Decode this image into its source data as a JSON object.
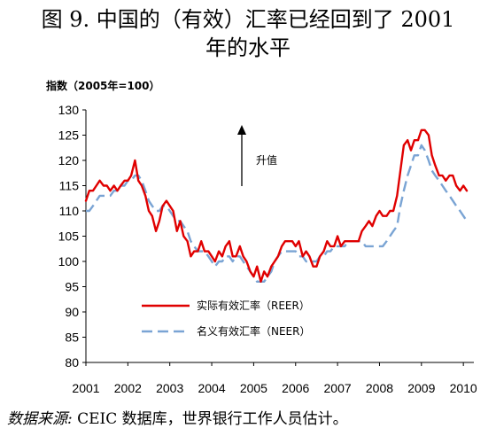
{
  "title": {
    "line1": "图 9. 中国的（有效）汇率已经回到了 2001",
    "line2": "年的水平"
  },
  "source": {
    "label": "数据来源:",
    "text": " CEIC 数据库，世界银行工作人员估计。"
  },
  "chart_data": {
    "type": "line",
    "ylabel": "指数（2005年=100）",
    "xlabel": "",
    "ylim": [
      80,
      130
    ],
    "xlim": [
      2001,
      2010.25
    ],
    "y_ticks": [
      "80",
      "85",
      "90",
      "95",
      "100",
      "105",
      "110",
      "115",
      "120",
      "125",
      "130"
    ],
    "x_ticks": [
      "2001",
      "2002",
      "2003",
      "2004",
      "2005",
      "2006",
      "2007",
      "2008",
      "2009",
      "2010"
    ],
    "grid": false,
    "legend_position": "bottom-center",
    "annotation": {
      "label": "升值",
      "direction": "up"
    },
    "series": [
      {
        "name": "实际有效汇率（REER）",
        "color": "#e00000",
        "style": "solid",
        "points": [
          [
            2001.0,
            112
          ],
          [
            2001.08,
            114
          ],
          [
            2001.17,
            114
          ],
          [
            2001.25,
            115
          ],
          [
            2001.33,
            116
          ],
          [
            2001.42,
            115
          ],
          [
            2001.5,
            115
          ],
          [
            2001.58,
            114
          ],
          [
            2001.67,
            115
          ],
          [
            2001.75,
            114
          ],
          [
            2001.83,
            115
          ],
          [
            2001.92,
            116
          ],
          [
            2002.0,
            116
          ],
          [
            2002.08,
            117
          ],
          [
            2002.17,
            120
          ],
          [
            2002.25,
            116
          ],
          [
            2002.33,
            115
          ],
          [
            2002.42,
            113
          ],
          [
            2002.5,
            110
          ],
          [
            2002.58,
            109
          ],
          [
            2002.67,
            106
          ],
          [
            2002.75,
            108
          ],
          [
            2002.83,
            111
          ],
          [
            2002.92,
            112
          ],
          [
            2003.0,
            111
          ],
          [
            2003.08,
            110
          ],
          [
            2003.17,
            106
          ],
          [
            2003.25,
            108
          ],
          [
            2003.33,
            105
          ],
          [
            2003.42,
            104
          ],
          [
            2003.5,
            101
          ],
          [
            2003.58,
            102
          ],
          [
            2003.67,
            102
          ],
          [
            2003.75,
            104
          ],
          [
            2003.83,
            102
          ],
          [
            2003.92,
            102
          ],
          [
            2004.0,
            101
          ],
          [
            2004.08,
            100
          ],
          [
            2004.17,
            102
          ],
          [
            2004.25,
            101
          ],
          [
            2004.33,
            103
          ],
          [
            2004.42,
            104
          ],
          [
            2004.5,
            101
          ],
          [
            2004.58,
            101
          ],
          [
            2004.67,
            103
          ],
          [
            2004.75,
            101
          ],
          [
            2004.83,
            100
          ],
          [
            2004.92,
            98
          ],
          [
            2005.0,
            97
          ],
          [
            2005.08,
            99
          ],
          [
            2005.17,
            96
          ],
          [
            2005.25,
            98
          ],
          [
            2005.33,
            97
          ],
          [
            2005.42,
            99
          ],
          [
            2005.5,
            100
          ],
          [
            2005.58,
            101
          ],
          [
            2005.67,
            103
          ],
          [
            2005.75,
            104
          ],
          [
            2005.83,
            104
          ],
          [
            2005.92,
            104
          ],
          [
            2006.0,
            103
          ],
          [
            2006.08,
            104
          ],
          [
            2006.17,
            101
          ],
          [
            2006.25,
            102
          ],
          [
            2006.33,
            101
          ],
          [
            2006.42,
            99
          ],
          [
            2006.5,
            99
          ],
          [
            2006.58,
            101
          ],
          [
            2006.67,
            102
          ],
          [
            2006.75,
            104
          ],
          [
            2006.83,
            103
          ],
          [
            2006.92,
            103
          ],
          [
            2007.0,
            105
          ],
          [
            2007.08,
            103
          ],
          [
            2007.17,
            104
          ],
          [
            2007.25,
            104
          ],
          [
            2007.33,
            104
          ],
          [
            2007.42,
            104
          ],
          [
            2007.5,
            104
          ],
          [
            2007.58,
            106
          ],
          [
            2007.67,
            107
          ],
          [
            2007.75,
            108
          ],
          [
            2007.83,
            107
          ],
          [
            2007.92,
            109
          ],
          [
            2008.0,
            110
          ],
          [
            2008.08,
            109
          ],
          [
            2008.17,
            109
          ],
          [
            2008.25,
            110
          ],
          [
            2008.33,
            110
          ],
          [
            2008.42,
            113
          ],
          [
            2008.5,
            118
          ],
          [
            2008.58,
            123
          ],
          [
            2008.67,
            124
          ],
          [
            2008.75,
            122
          ],
          [
            2008.83,
            124
          ],
          [
            2008.92,
            124
          ],
          [
            2009.0,
            126
          ],
          [
            2009.08,
            126
          ],
          [
            2009.17,
            125
          ],
          [
            2009.25,
            121
          ],
          [
            2009.33,
            119
          ],
          [
            2009.42,
            117
          ],
          [
            2009.5,
            117
          ],
          [
            2009.58,
            116
          ],
          [
            2009.67,
            117
          ],
          [
            2009.75,
            117
          ],
          [
            2009.83,
            115
          ],
          [
            2009.92,
            114
          ],
          [
            2010.0,
            115
          ],
          [
            2010.08,
            114
          ]
        ]
      },
      {
        "name": "名义有效汇率（NEER）",
        "color": "#7aa4d4",
        "style": "dashed",
        "points": [
          [
            2001.0,
            110
          ],
          [
            2001.08,
            110
          ],
          [
            2001.17,
            111
          ],
          [
            2001.25,
            112
          ],
          [
            2001.33,
            113
          ],
          [
            2001.42,
            113
          ],
          [
            2001.5,
            113
          ],
          [
            2001.58,
            113
          ],
          [
            2001.67,
            114
          ],
          [
            2001.75,
            114
          ],
          [
            2001.83,
            115
          ],
          [
            2001.92,
            115
          ],
          [
            2002.0,
            116
          ],
          [
            2002.08,
            116
          ],
          [
            2002.17,
            117
          ],
          [
            2002.25,
            117
          ],
          [
            2002.33,
            116
          ],
          [
            2002.42,
            114
          ],
          [
            2002.5,
            112
          ],
          [
            2002.58,
            111
          ],
          [
            2002.67,
            110
          ],
          [
            2002.75,
            110
          ],
          [
            2002.83,
            111
          ],
          [
            2002.92,
            111
          ],
          [
            2003.0,
            110
          ],
          [
            2003.08,
            109
          ],
          [
            2003.17,
            108
          ],
          [
            2003.25,
            108
          ],
          [
            2003.33,
            107
          ],
          [
            2003.42,
            106
          ],
          [
            2003.5,
            104
          ],
          [
            2003.58,
            103
          ],
          [
            2003.67,
            102
          ],
          [
            2003.75,
            102
          ],
          [
            2003.83,
            102
          ],
          [
            2003.92,
            101
          ],
          [
            2004.0,
            100
          ],
          [
            2004.08,
            99
          ],
          [
            2004.17,
            100
          ],
          [
            2004.25,
            100
          ],
          [
            2004.33,
            101
          ],
          [
            2004.42,
            101
          ],
          [
            2004.5,
            100
          ],
          [
            2004.58,
            101
          ],
          [
            2004.67,
            101
          ],
          [
            2004.75,
            100
          ],
          [
            2004.83,
            99
          ],
          [
            2004.92,
            98
          ],
          [
            2005.0,
            97
          ],
          [
            2005.08,
            96
          ],
          [
            2005.17,
            96
          ],
          [
            2005.25,
            96
          ],
          [
            2005.33,
            97
          ],
          [
            2005.42,
            98
          ],
          [
            2005.5,
            100
          ],
          [
            2005.58,
            101
          ],
          [
            2005.67,
            102
          ],
          [
            2005.75,
            102
          ],
          [
            2005.83,
            102
          ],
          [
            2005.92,
            102
          ],
          [
            2006.0,
            102
          ],
          [
            2006.08,
            101
          ],
          [
            2006.17,
            101
          ],
          [
            2006.25,
            100
          ],
          [
            2006.33,
            100
          ],
          [
            2006.42,
            100
          ],
          [
            2006.5,
            100
          ],
          [
            2006.58,
            101
          ],
          [
            2006.67,
            101
          ],
          [
            2006.75,
            102
          ],
          [
            2006.83,
            102
          ],
          [
            2006.92,
            103
          ],
          [
            2007.0,
            103
          ],
          [
            2007.08,
            103
          ],
          [
            2007.17,
            103
          ],
          [
            2007.25,
            104
          ],
          [
            2007.33,
            104
          ],
          [
            2007.42,
            104
          ],
          [
            2007.5,
            104
          ],
          [
            2007.58,
            104
          ],
          [
            2007.67,
            103
          ],
          [
            2007.75,
            103
          ],
          [
            2007.83,
            103
          ],
          [
            2007.92,
            103
          ],
          [
            2008.0,
            103
          ],
          [
            2008.08,
            103
          ],
          [
            2008.17,
            104
          ],
          [
            2008.25,
            105
          ],
          [
            2008.33,
            106
          ],
          [
            2008.42,
            107
          ],
          [
            2008.5,
            111
          ],
          [
            2008.58,
            114
          ],
          [
            2008.67,
            117
          ],
          [
            2008.75,
            119
          ],
          [
            2008.83,
            121
          ],
          [
            2008.92,
            121
          ],
          [
            2009.0,
            123
          ],
          [
            2009.08,
            122
          ],
          [
            2009.17,
            120
          ],
          [
            2009.25,
            118
          ],
          [
            2009.33,
            117
          ],
          [
            2009.42,
            116
          ],
          [
            2009.5,
            115
          ],
          [
            2009.58,
            114
          ],
          [
            2009.67,
            113
          ],
          [
            2009.75,
            112
          ],
          [
            2009.83,
            111
          ],
          [
            2009.92,
            110
          ],
          [
            2010.0,
            109
          ],
          [
            2010.08,
            108
          ]
        ]
      }
    ]
  }
}
